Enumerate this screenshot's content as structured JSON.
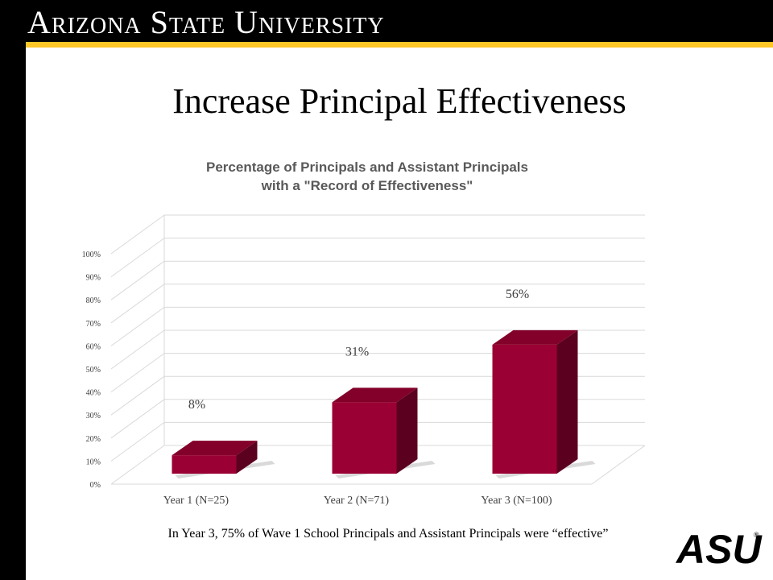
{
  "header": {
    "title": "Arizona State University"
  },
  "slide": {
    "title": "Increase Principal Effectiveness",
    "caption": "In Year 3, 75% of Wave 1 School Principals and Assistant Principals were “effective”"
  },
  "logo": {
    "text": "ASU",
    "registered": "®"
  },
  "colors": {
    "header_bg": "#000000",
    "gold": "#ffc627",
    "bar_front": "#9b0034",
    "bar_top": "#820029",
    "bar_side": "#5c0020"
  },
  "chart_data": {
    "type": "bar",
    "title_line1": "Percentage of Principals and Assistant Principals",
    "title_line2": "with a \"Record of Effectiveness\"",
    "categories": [
      "Year 1 (N=25)",
      "Year 2 (N=71)",
      "Year 3 (N=100)"
    ],
    "values": [
      8,
      31,
      56
    ],
    "data_labels": [
      "8%",
      "31%",
      "56%"
    ],
    "y_ticks": [
      0,
      10,
      20,
      30,
      40,
      50,
      60,
      70,
      80,
      90,
      100
    ],
    "y_tick_labels": [
      "0%",
      "10%",
      "20%",
      "30%",
      "40%",
      "50%",
      "60%",
      "70%",
      "80%",
      "90%",
      "100%"
    ],
    "ylim": [
      0,
      100
    ],
    "grid": true,
    "legend": "none",
    "style": "3d-column"
  }
}
